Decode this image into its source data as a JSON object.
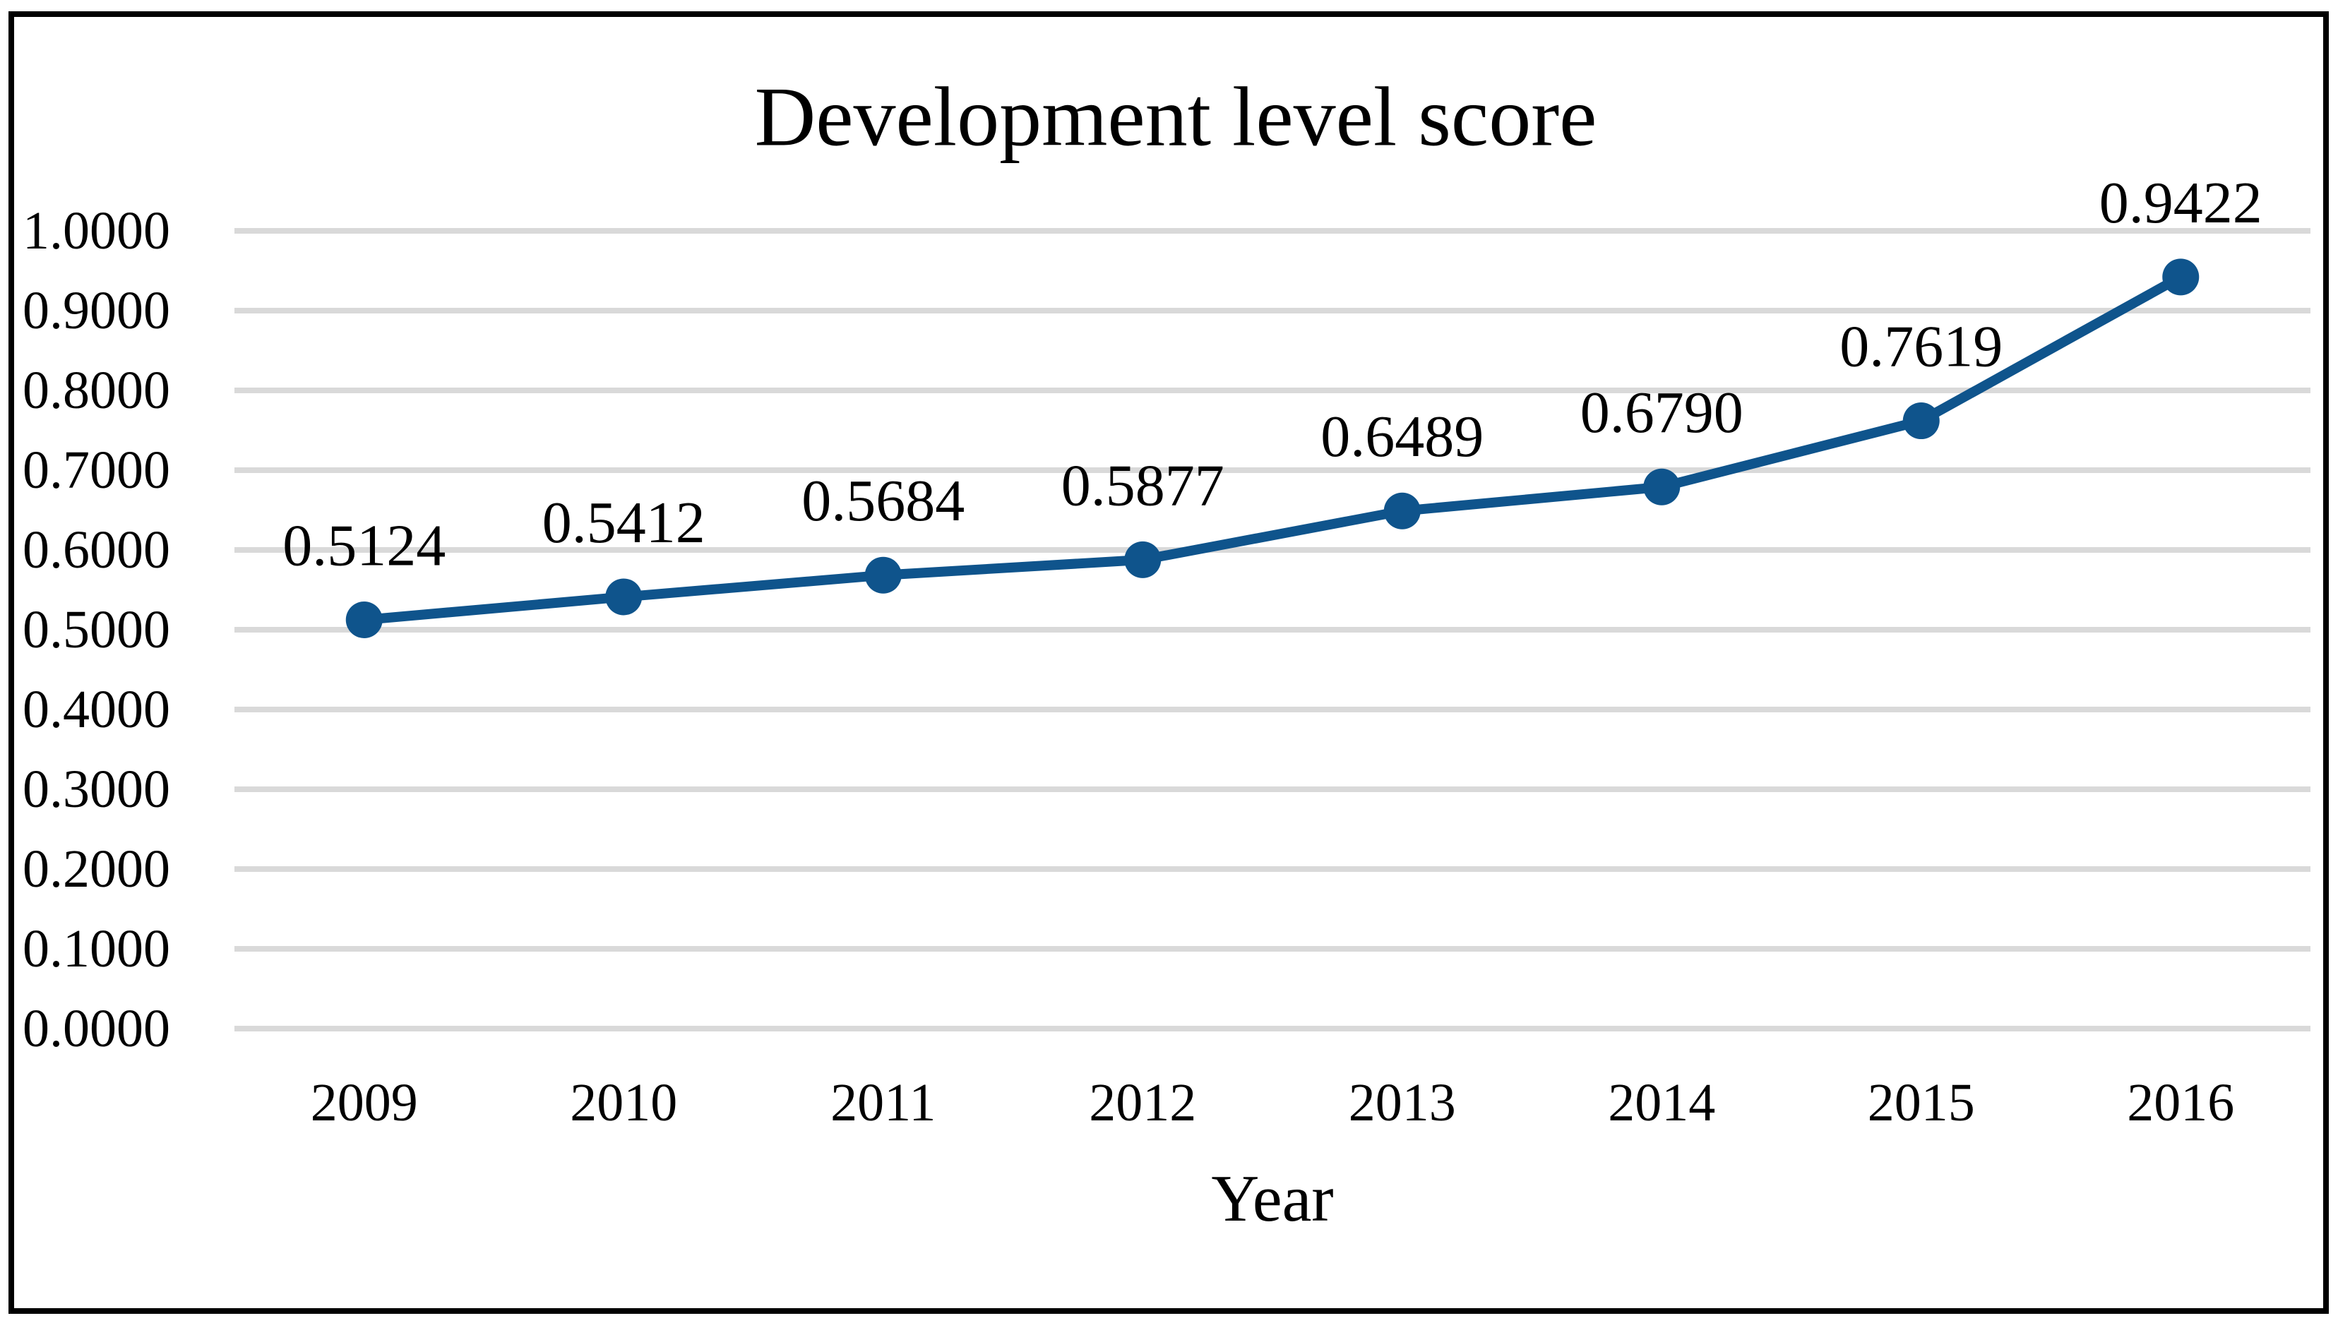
{
  "chart_data": {
    "type": "line",
    "title": "Development level score",
    "xlabel": "Year",
    "ylabel": "",
    "categories": [
      "2009",
      "2010",
      "2011",
      "2012",
      "2013",
      "2014",
      "2015",
      "2016"
    ],
    "series": [
      {
        "name": "Development level score",
        "values": [
          0.5124,
          0.5412,
          0.5684,
          0.5877,
          0.6489,
          0.679,
          0.7619,
          0.9422
        ]
      }
    ],
    "data_labels": [
      "0.5124",
      "0.5412",
      "0.5684",
      "0.5877",
      "0.6489",
      "0.6790",
      "0.7619",
      "0.9422"
    ],
    "y_ticks": [
      "0.0000",
      "0.1000",
      "0.2000",
      "0.3000",
      "0.4000",
      "0.5000",
      "0.6000",
      "0.7000",
      "0.8000",
      "0.9000",
      "1.0000"
    ],
    "ylim": [
      0.0,
      1.0
    ],
    "grid": "horizontal",
    "legend": "none",
    "data_label_position": "above",
    "colors": {
      "line": "#0F548C",
      "marker": "#0F548C",
      "gridline": "#D9D9D9",
      "text": "#000000",
      "frame_border": "#000000",
      "background": "#FFFFFF"
    }
  }
}
